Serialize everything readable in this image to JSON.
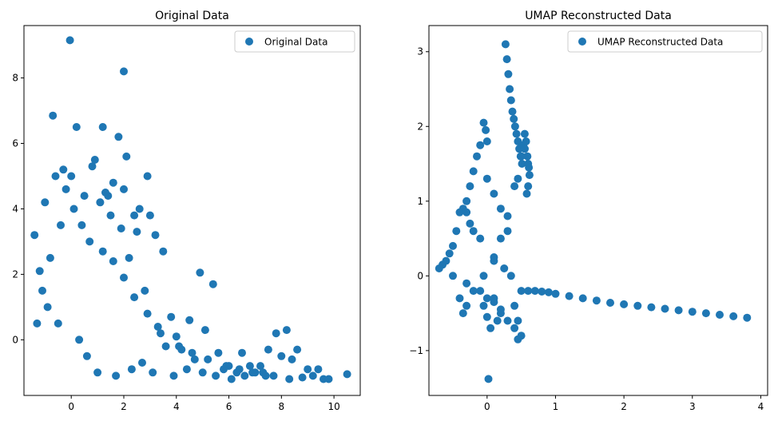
{
  "colors": {
    "marker": "#1f77b4",
    "axis": "#000000",
    "background": "#ffffff"
  },
  "chart_data": [
    {
      "type": "scatter",
      "title": "Original Data",
      "xlabel": "",
      "ylabel": "",
      "xlim": [
        -1.8,
        11.0
      ],
      "ylim": [
        -1.7,
        9.6
      ],
      "x_ticks": [
        0,
        2,
        4,
        6,
        8,
        10
      ],
      "y_ticks": [
        0,
        2,
        4,
        6,
        8
      ],
      "x_tick_labels": [
        "0",
        "2",
        "4",
        "6",
        "8",
        "10"
      ],
      "y_tick_labels": [
        "0",
        "2",
        "4",
        "6",
        "8"
      ],
      "legend": {
        "position": "top-right",
        "label": "Original Data"
      },
      "grid": false,
      "series": [
        {
          "name": "Original Data",
          "x": [
            -0.05,
            2.0,
            -0.7,
            0.2,
            1.2,
            1.8,
            0.9,
            0.8,
            2.1,
            -0.3,
            0.0,
            -0.6,
            2.9,
            1.6,
            1.4,
            1.3,
            2.6,
            2.4,
            3.0,
            3.2,
            3.5,
            2.0,
            2.5,
            3.8,
            4.0,
            4.5,
            4.9,
            5.4,
            4.2,
            5.1,
            5.6,
            6.0,
            6.5,
            6.8,
            7.2,
            7.5,
            7.8,
            8.0,
            8.2,
            8.4,
            8.6,
            9.0,
            9.4,
            9.6,
            10.5,
            6.3,
            7.0,
            5.8,
            4.7,
            3.6,
            3.3,
            2.8,
            2.2,
            1.9,
            1.5,
            1.1,
            0.5,
            -0.2,
            -1.0,
            -1.4,
            -1.2,
            -0.9,
            -0.5,
            0.3,
            0.6,
            1.0,
            1.7,
            2.3,
            2.7,
            3.1,
            3.9,
            4.4,
            5.0,
            5.5,
            6.1,
            6.6,
            7.3,
            7.7,
            8.3,
            9.2,
            -1.3,
            -1.1,
            -0.8,
            -0.4,
            0.1,
            0.4,
            0.7,
            1.2,
            1.6,
            2.0,
            2.4,
            2.9,
            3.4,
            4.1,
            4.6,
            5.2,
            5.9,
            6.4,
            6.9,
            7.4,
            8.8,
            9.8
          ],
          "y": [
            9.15,
            8.2,
            6.85,
            6.5,
            6.5,
            6.2,
            5.5,
            5.3,
            5.6,
            5.2,
            5.0,
            5.0,
            5.0,
            4.8,
            4.4,
            4.5,
            4.0,
            3.8,
            3.8,
            3.2,
            2.7,
            4.6,
            3.3,
            0.7,
            0.1,
            0.6,
            2.05,
            1.7,
            -0.3,
            0.3,
            -0.4,
            -0.8,
            -0.4,
            -0.8,
            -0.8,
            -0.3,
            0.2,
            -0.5,
            0.3,
            -0.6,
            -0.3,
            -0.9,
            -0.9,
            -1.2,
            -1.05,
            -1.0,
            -1.0,
            -0.9,
            -0.6,
            -0.2,
            0.4,
            1.5,
            2.5,
            3.4,
            3.8,
            4.2,
            4.4,
            4.6,
            4.2,
            3.2,
            2.1,
            1.0,
            0.5,
            0.0,
            -0.5,
            -1.0,
            -1.1,
            -0.9,
            -0.7,
            -1.0,
            -1.1,
            -0.9,
            -1.0,
            -1.1,
            -1.2,
            -1.1,
            -1.0,
            -1.1,
            -1.2,
            -1.1,
            0.5,
            1.5,
            2.5,
            3.5,
            4.0,
            3.5,
            3.0,
            2.7,
            2.4,
            1.9,
            1.3,
            0.8,
            0.2,
            -0.2,
            -0.4,
            -0.6,
            -0.8,
            -0.9,
            -1.0,
            -1.1,
            -1.15,
            -1.2
          ]
        }
      ]
    },
    {
      "type": "scatter",
      "title": "UMAP Reconstructed Data",
      "xlabel": "",
      "ylabel": "",
      "xlim": [
        -0.85,
        4.1
      ],
      "ylim": [
        -1.6,
        3.35
      ],
      "x_ticks": [
        0,
        1,
        2,
        3,
        4
      ],
      "y_ticks": [
        -1,
        0,
        1,
        2,
        3
      ],
      "x_tick_labels": [
        "0",
        "1",
        "2",
        "3",
        "4"
      ],
      "y_tick_labels": [
        "−1",
        "0",
        "1",
        "2",
        "3"
      ],
      "legend": {
        "position": "top-right",
        "label": "UMAP Reconstructed Data"
      },
      "grid": false,
      "series": [
        {
          "name": "UMAP Reconstructed Data",
          "x": [
            0.27,
            0.29,
            0.31,
            0.33,
            0.35,
            0.37,
            0.39,
            0.41,
            0.43,
            0.45,
            0.47,
            0.49,
            0.51,
            0.53,
            0.55,
            0.57,
            0.59,
            0.61,
            0.62,
            0.6,
            0.58,
            0.55,
            -0.05,
            -0.02,
            0.0,
            -0.1,
            -0.15,
            -0.2,
            -0.25,
            -0.3,
            -0.35,
            -0.4,
            -0.45,
            -0.5,
            -0.55,
            -0.6,
            -0.65,
            -0.7,
            -0.5,
            -0.3,
            -0.1,
            0.1,
            0.2,
            0.15,
            0.05,
            0.0,
            -0.05,
            0.1,
            0.2,
            0.3,
            0.4,
            0.45,
            0.5,
            0.55,
            0.6,
            0.35,
            0.25,
            0.1,
            -0.05,
            -0.2,
            -0.3,
            0.0,
            0.1,
            0.2,
            0.3,
            0.4,
            0.45,
            0.3,
            0.2,
            0.1,
            0.0,
            -0.3,
            -0.25,
            -0.2,
            -0.1,
            -0.4,
            -0.35,
            0.5,
            0.6,
            0.7,
            0.8,
            0.9,
            1.0,
            1.2,
            1.4,
            1.6,
            1.8,
            2.0,
            2.2,
            2.4,
            2.6,
            2.8,
            3.0,
            3.2,
            3.4,
            3.6,
            3.8,
            0.02,
            0.4,
            0.5,
            0.45
          ],
          "y": [
            3.1,
            2.9,
            2.7,
            2.5,
            2.35,
            2.2,
            2.1,
            2.0,
            1.9,
            1.8,
            1.7,
            1.6,
            1.5,
            1.75,
            1.9,
            1.8,
            1.6,
            1.45,
            1.35,
            1.2,
            1.1,
            1.7,
            2.05,
            1.95,
            1.8,
            1.75,
            1.6,
            1.4,
            1.2,
            1.0,
            0.9,
            0.85,
            0.6,
            0.4,
            0.3,
            0.2,
            0.15,
            0.1,
            0.0,
            -0.1,
            -0.2,
            -0.3,
            -0.5,
            -0.6,
            -0.7,
            -0.55,
            -0.4,
            0.2,
            0.5,
            0.8,
            1.2,
            1.3,
            1.6,
            1.7,
            1.5,
            0.0,
            0.1,
            0.25,
            0.0,
            -0.2,
            -0.4,
            -0.3,
            -0.35,
            -0.45,
            -0.6,
            -0.7,
            -0.85,
            0.6,
            0.9,
            1.1,
            1.3,
            0.85,
            0.7,
            0.6,
            0.5,
            -0.3,
            -0.5,
            -0.2,
            -0.2,
            -0.2,
            -0.21,
            -0.22,
            -0.24,
            -0.27,
            -0.3,
            -0.33,
            -0.36,
            -0.38,
            -0.4,
            -0.42,
            -0.44,
            -0.46,
            -0.48,
            -0.5,
            -0.52,
            -0.54,
            -0.56,
            -1.38,
            -0.4,
            -0.8,
            -0.6
          ]
        }
      ]
    }
  ]
}
